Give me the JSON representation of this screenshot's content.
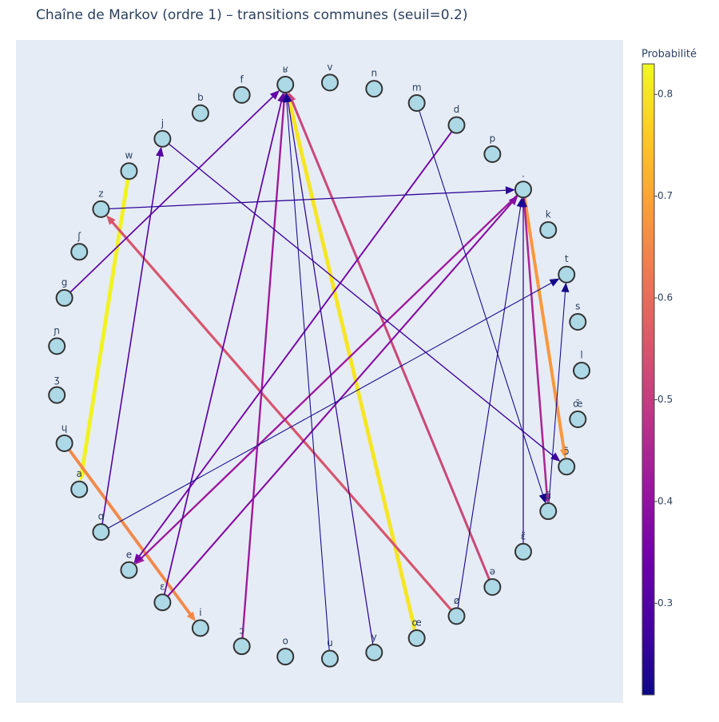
{
  "chart_data": {
    "type": "network",
    "title": "Chaîne de Markov (ordre 1) – transitions communes (seuil=0.2)",
    "colorbar_title": "Probabilité",
    "clim": [
      0.21,
      0.83
    ],
    "cticks": [
      0.3,
      0.4,
      0.5,
      0.6,
      0.7,
      0.8
    ],
    "colorscale": [
      "#0d0887",
      "#46039f",
      "#7201a8",
      "#9c179e",
      "#bd3786",
      "#d8576b",
      "#ed7953",
      "#fb9f3a",
      "#fdca26",
      "#f0f921"
    ],
    "node_color": "#add8e6",
    "nodes": [
      "l",
      "s",
      "t",
      "k",
      ".",
      "p",
      "d",
      "m",
      "n",
      "v",
      "ʁ",
      "f",
      "b",
      "j",
      "w",
      "z",
      "ʃ",
      "g",
      "ɲ",
      "ʒ",
      "ɥ",
      "a",
      "ɑ",
      "e",
      "ɛ",
      "i",
      "ɔ",
      "o",
      "u",
      "y",
      "œ",
      "ø",
      "ə",
      "ɛ̃",
      "ɑ̃",
      "ɔ̃",
      "œ̃"
    ],
    "edges": [
      {
        "source": "w",
        "target": "a",
        "value": 0.82
      },
      {
        "source": "œ",
        "target": "ʁ",
        "value": 0.8
      },
      {
        "source": "ɥ",
        "target": "i",
        "value": 0.65
      },
      {
        "source": ".",
        "target": "ɔ̃",
        "value": 0.68
      },
      {
        "source": "ø",
        "target": "z",
        "value": 0.55
      },
      {
        "source": "ə",
        "target": "ʁ",
        "value": 0.52
      },
      {
        "source": ".",
        "target": "ɑ̃",
        "value": 0.45
      },
      {
        "source": "ɔ",
        "target": "ʁ",
        "value": 0.42
      },
      {
        "source": ".",
        "target": "e",
        "value": 0.42
      },
      {
        "source": "ɛ",
        "target": ".",
        "value": 0.38
      },
      {
        "source": "d",
        "target": "e",
        "value": 0.35
      },
      {
        "source": "g",
        "target": "ʁ",
        "value": 0.32
      },
      {
        "source": "ɛ",
        "target": "ʁ",
        "value": 0.32
      },
      {
        "source": "y",
        "target": "ʁ",
        "value": 0.25
      },
      {
        "source": "u",
        "target": "ʁ",
        "value": 0.22
      },
      {
        "source": "ɑ",
        "target": "j",
        "value": 0.3
      },
      {
        "source": "j",
        "target": "ɔ̃",
        "value": 0.27
      },
      {
        "source": "z",
        "target": ".",
        "value": 0.25
      },
      {
        "source": "ɑ",
        "target": "t",
        "value": 0.22
      },
      {
        "source": "m",
        "target": "ɑ̃",
        "value": 0.22
      },
      {
        "source": "ɛ̃",
        "target": ".",
        "value": 0.25
      },
      {
        "source": "ø",
        "target": ".",
        "value": 0.23
      },
      {
        "source": "ɑ̃",
        "target": "t",
        "value": 0.22
      }
    ]
  }
}
